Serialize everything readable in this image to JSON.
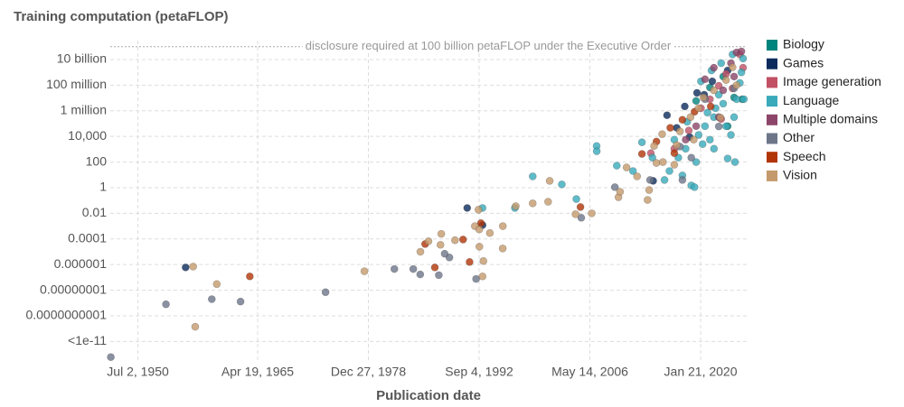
{
  "chart_data": {
    "type": "scatter",
    "title": "Training computation (petaFLOP)",
    "x_label": "Publication date",
    "log_y": true,
    "grid": true,
    "legend_position": "right",
    "threshold": 100000000000.0,
    "threshold_label": "disclosure required at 100 billion petaFLOP under the Executive Order",
    "xlim": [
      "1947-02-01",
      "2025-10-01"
    ],
    "ylim": [
      3e-14,
      300000000000.0
    ],
    "xticks": [
      {
        "value": "1950-07-02",
        "label": "Jul 2, 1950"
      },
      {
        "value": "1965-04-19",
        "label": "Apr 19, 1965"
      },
      {
        "value": "1978-12-27",
        "label": "Dec 27, 1978"
      },
      {
        "value": "1992-09-04",
        "label": "Sep 4, 1992"
      },
      {
        "value": "2006-05-14",
        "label": "May 14, 2006"
      },
      {
        "value": "2020-01-21",
        "label": "Jan 21, 2020"
      }
    ],
    "yticks": [
      {
        "value": 10000000000.0,
        "label": "10 billion"
      },
      {
        "value": 100000000.0,
        "label": "100 million"
      },
      {
        "value": 1000000.0,
        "label": "1 million"
      },
      {
        "value": 10000,
        "label": "10,000"
      },
      100,
      1,
      0.01,
      0.0001,
      {
        "value": 1e-06,
        "label": "0.000001"
      },
      {
        "value": 1e-08,
        "label": "0.00000001"
      },
      {
        "value": 1e-10,
        "label": "0.0000000001"
      },
      {
        "value": 1e-12,
        "label": "<1e-11"
      }
    ],
    "series": [
      {
        "name": "Biology",
        "color": "#00847e",
        "x": [
          "2019-07-01",
          "2021-03-15",
          "2022-11-05",
          "2024-03-10",
          "2025-03-10",
          "2023-05-25"
        ],
        "values": [
          5900000.0,
          66000000.0,
          470000000.0,
          11000000.0,
          8000000.0,
          63000.0
        ]
      },
      {
        "name": "Games",
        "color": "#0b2b5c",
        "x": [
          "1956-05-25",
          "1991-03-15",
          "1993-02-05",
          "2014-03-10",
          "2015-11-25",
          "2017-02-05",
          "2018-02-05",
          "2019-08-10",
          "2021-07-01",
          "2023-05-25",
          "2020-07-01",
          "2018-09-10"
        ],
        "values": [
          6e-07,
          0.026,
          0.0012,
          3.4,
          450000.0,
          47000.0,
          2200000.0,
          25000000.0,
          200000000.0,
          1400000000.0,
          18000000.0,
          9000
        ]
      },
      {
        "name": "Image generation",
        "color": "#c15065",
        "x": [
          "2013-11-25",
          "2016-10-20",
          "2018-08-05",
          "2020-02-05",
          "2021-03-15",
          "2022-04-20",
          "2023-03-15",
          "2024-01-01",
          "2024-11-25",
          "2025-04-20",
          "2022-08-05"
        ],
        "values": [
          500,
          1100,
          29000.0,
          1600000.0,
          8000000.0,
          90000000.0,
          760000000.0,
          56000000.0,
          25000000000.0,
          2300000000.0,
          230000.0
        ]
      },
      {
        "name": "Language",
        "color": "#38aaba",
        "x": [
          "1993-02-05",
          "1997-02-05",
          "1999-04-20",
          "2002-11-25",
          "2004-09-10",
          "2007-03-15",
          "2007-03-20",
          "2009-09-10",
          "2011-09-10",
          "2012-10-20",
          "2014-02-05",
          "2015-08-05",
          "2016-03-15",
          "2016-10-20",
          "2017-04-20",
          "2017-10-20",
          "2018-03-15",
          "2018-05-25",
          "2018-11-25",
          "2019-04-20",
          "2019-07-01",
          "2019-10-20",
          "2020-02-05",
          "2020-04-20",
          "2020-08-05",
          "2020-11-25",
          "2021-03-15",
          "2021-05-25",
          "2021-09-10",
          "2021-09-15",
          "2021-11-25",
          "2022-04-20",
          "2022-08-05",
          "2022-11-05",
          "2023-03-15",
          "2023-05-25",
          "2023-10-20",
          "2024-01-01",
          "2024-03-10",
          "2024-04-20",
          "2024-07-01",
          "2024-11-25",
          "2025-02-05",
          "2025-04-20",
          "2025-05-25"
        ],
        "values": [
          0.026,
          0.026,
          7.6,
          1.8,
          0.13,
          1800,
          700,
          52,
          20,
          3500,
          220,
          4,
          20,
          5600,
          220,
          9,
          1100,
          140000.0,
          1.5,
          1.1,
          100,
          13000.0,
          200000000.0,
          2500,
          63000.0,
          720000.0,
          5600,
          1400000000.0,
          320000.0,
          1100,
          1600000.0,
          18000000.0,
          5200000000.0,
          3600000.0,
          63000.0,
          190,
          13000.0,
          25000000000.0,
          320000.0,
          100,
          8000000.0,
          150000000.0,
          1000000000.0,
          12000000000.0,
          8000000.0
        ]
      },
      {
        "name": "Multiple domains",
        "color": "#8c4569",
        "x": [
          "2020-08-05",
          "2021-09-10",
          "2022-11-05",
          "2023-10-20",
          "2024-07-01",
          "2025-02-05",
          "2024-03-10",
          "2022-04-20",
          "2019-07-01",
          "2018-03-15"
        ],
        "values": [
          290000000.0,
          2300000000.0,
          40000000.0,
          5200000000.0,
          36000000000.0,
          43000000000.0,
          470000000.0,
          320000.0,
          63000.0,
          5600
        ]
      },
      {
        "name": "Other",
        "color": "#6d7689",
        "x": [
          "1947-02-25",
          "1953-12-20",
          "1959-08-20",
          "1963-03-10",
          "1973-09-10",
          "1982-03-15",
          "1984-07-15",
          "1985-05-25",
          "1987-09-10",
          "1989-01-01",
          "1988-06-01",
          "1992-04-20",
          "2005-04-20",
          "2009-06-15",
          "2013-10-20",
          "2017-07-01",
          "2018-11-25",
          "2020-08-05",
          "2022-04-20",
          "2024-03-10",
          "2017-10-20"
        ],
        "values": [
          6e-14,
          8e-10,
          2e-09,
          1.3e-09,
          7e-09,
          4.5e-07,
          4.5e-07,
          1.7e-07,
          1.5e-07,
          3.6e-06,
          7e-06,
          7.6e-08,
          0.0045,
          1.1,
          4,
          1600,
          220,
          8000000.0,
          60000.0,
          56000000.0,
          4
        ]
      },
      {
        "name": "Speech",
        "color": "#b13507",
        "x": [
          "1964-05-01",
          "1986-01-01",
          "1987-03-15",
          "1990-09-10",
          "1991-07-01",
          "1992-11-25",
          "2005-03-15",
          "2012-10-20",
          "2014-08-05",
          "2016-04-20",
          "2016-10-20",
          "2017-10-20",
          "2019-04-20",
          "2021-04-20"
        ],
        "values": [
          1.2e-07,
          4e-05,
          6e-07,
          9e-05,
          1.6e-06,
          0.0017,
          0.031,
          430,
          4000,
          47000.0,
          500,
          200000.0,
          850000.0,
          2200000.0
        ]
      },
      {
        "name": "Vision",
        "color": "#c49a6c",
        "x": [
          "1957-08-01",
          "1957-05-01",
          "1960-04-01",
          "1978-07-01",
          "1985-06-01",
          "1986-06-01",
          "1987-11-25",
          "1989-09-10",
          "1988-01-01",
          "1992-02-25",
          "1992-09-10",
          "1992-09-15",
          "1993-02-05",
          "1993-03-15",
          "1992-08-05",
          "1994-01-01",
          "1995-08-05",
          "1995-08-10",
          "1997-03-15",
          "1999-04-20",
          "2001-03-15",
          "2001-05-25",
          "2004-08-05",
          "2006-08-05",
          "2009-11-25",
          "2010-02-05",
          "2010-11-25",
          "2013-07-01",
          "2013-09-10",
          "2012-03-15",
          "2014-04-20",
          "2014-08-05",
          "2015-04-20",
          "2015-05-25",
          "2016-10-20",
          "2017-02-05",
          "2017-07-01",
          "2018-10-20",
          "2019-03-15",
          "2019-10-20",
          "2020-05-25",
          "2021-09-10",
          "2022-07-01",
          "2023-03-15",
          "2024-01-01",
          "2024-07-01"
        ],
        "values": [
          1.4e-11,
          7e-07,
          3e-08,
          3e-07,
          1e-05,
          6.6e-05,
          3.5e-05,
          8e-05,
          0.00025,
          0.001,
          0.00055,
          2.5e-05,
          1.2e-07,
          1.9e-06,
          0.019,
          0.00029,
          1.8e-05,
          0.001,
          0.036,
          0.06,
          0.08,
          3.4,
          0.0085,
          0.01,
          0.18,
          0.48,
          38,
          0.11,
          0.66,
          7.6,
          1800,
          85,
          15000,
          100,
          62,
          2100,
          25000,
          320000.0,
          5600,
          1600000.0,
          11000000.0,
          40000000.0,
          300000.0,
          250000000.0,
          2500000000.0,
          100000000.0
        ]
      }
    ]
  }
}
